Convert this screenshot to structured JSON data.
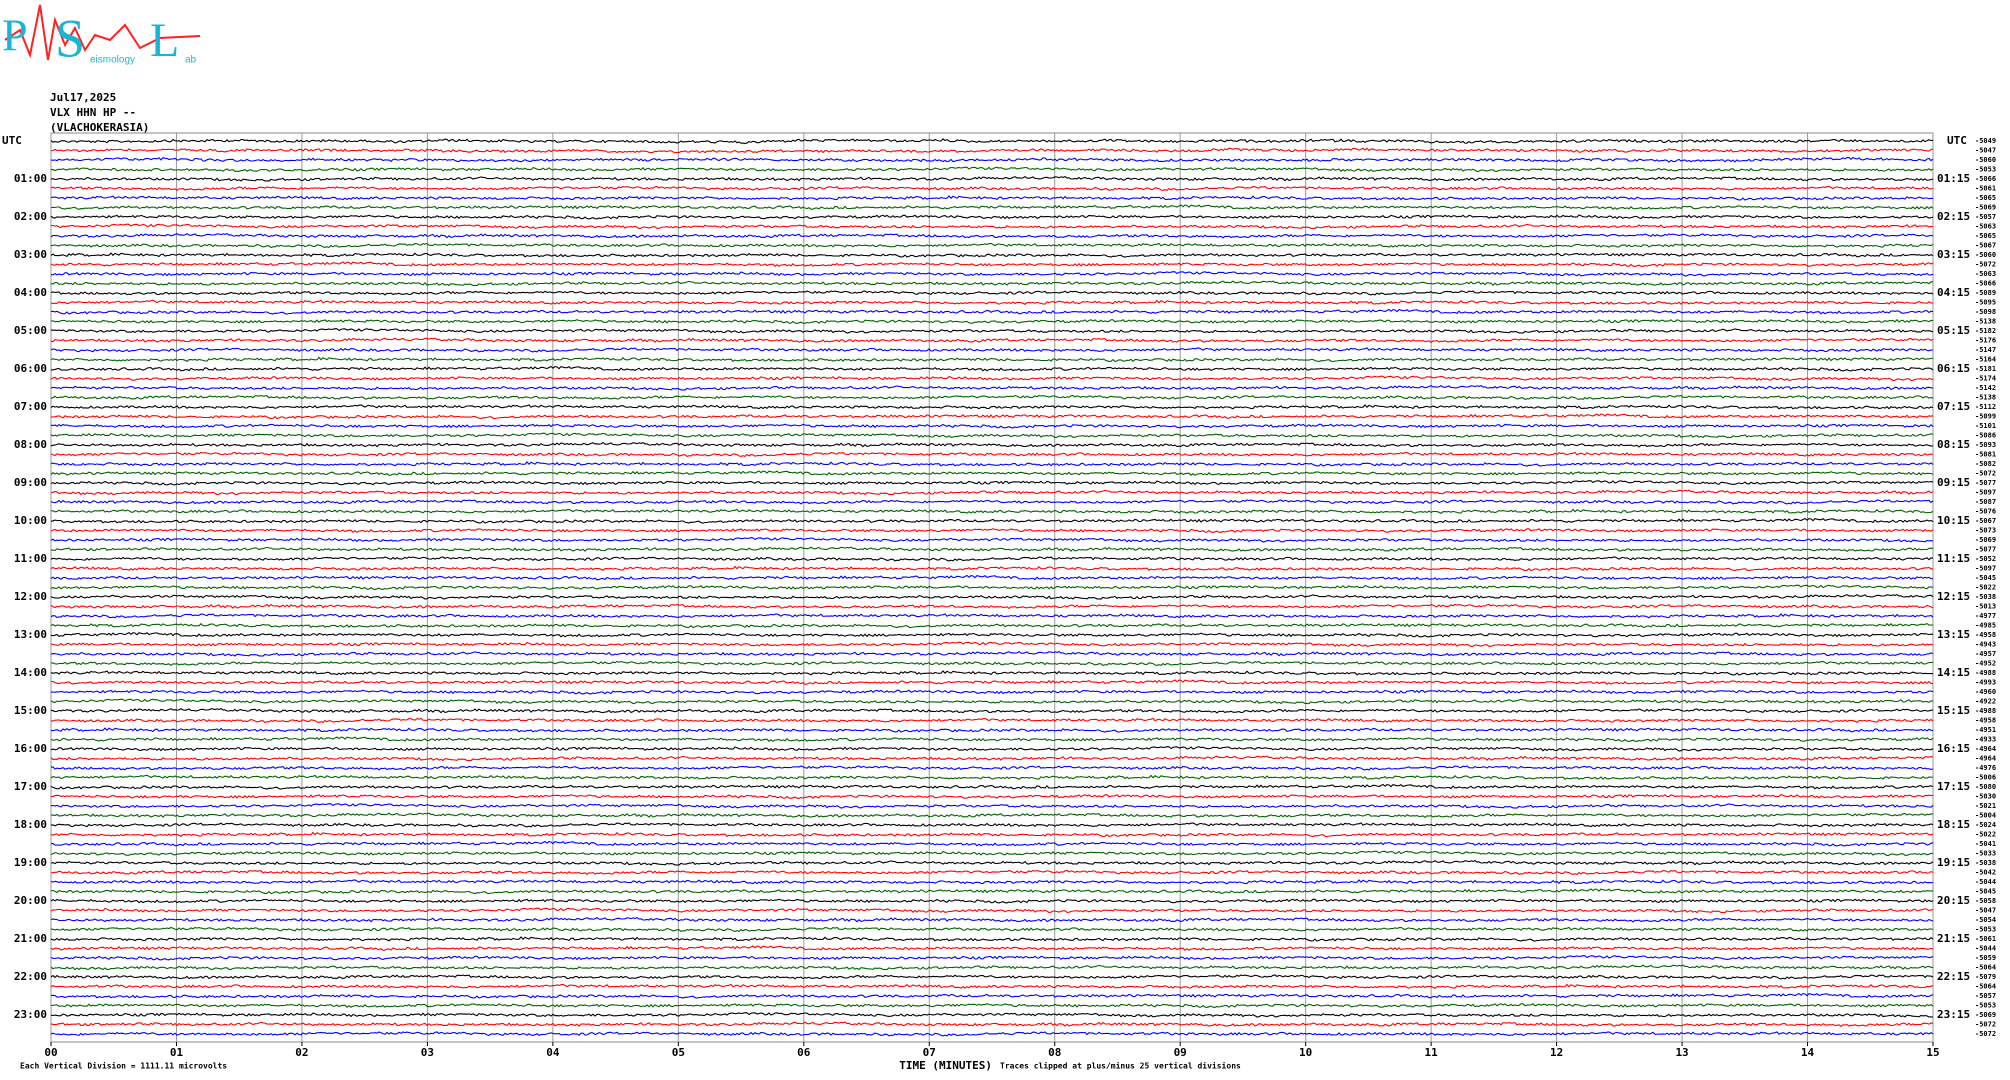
{
  "logo": {
    "letters": [
      "P",
      "S",
      "L"
    ],
    "small": [
      "eismology",
      "ab"
    ]
  },
  "header": {
    "date": "Jul17,2025",
    "station": "VLX HHN HP --",
    "site": "(VLACHOKERASIA)"
  },
  "chart_data": {
    "type": "helicorder",
    "utc_left": "UTC",
    "utc_right": "UTC",
    "hours_left": [
      "01:00",
      "02:00",
      "03:00",
      "04:00",
      "05:00",
      "06:00",
      "07:00",
      "08:00",
      "09:00",
      "10:00",
      "11:00",
      "12:00",
      "13:00",
      "14:00",
      "15:00",
      "16:00",
      "17:00",
      "18:00",
      "19:00",
      "20:00",
      "21:00",
      "22:00",
      "23:00"
    ],
    "hours_right": [
      "01:15",
      "02:15",
      "03:15",
      "04:15",
      "05:15",
      "06:15",
      "07:15",
      "08:15",
      "09:15",
      "10:15",
      "11:15",
      "12:15",
      "13:15",
      "14:15",
      "15:15",
      "16:15",
      "17:15",
      "18:15",
      "19:15",
      "20:15",
      "21:15",
      "22:15",
      "23:15"
    ],
    "trace_colors": [
      "#000000",
      "#ff0000",
      "#0000ff",
      "#006400"
    ],
    "trace_offsets": [
      -5049,
      -5047,
      -5060,
      -5053,
      -5066,
      -5061,
      -5065,
      -5069,
      -5057,
      -5063,
      -5065,
      -5067,
      -5060,
      -5072,
      -5063,
      -5066,
      -5089,
      -5095,
      -5098,
      -5138,
      -5182,
      -5176,
      -5147,
      -5164,
      -5181,
      -5174,
      -5142,
      -5138,
      -5112,
      -5099,
      -5101,
      -5086,
      -5093,
      -5081,
      -5082,
      -5072,
      -5077,
      -5097,
      -5087,
      -5076,
      -5067,
      -5073,
      -5069,
      -5077,
      -5052,
      -5097,
      -5045,
      -5022,
      -5038,
      -5013,
      -4977,
      -4985,
      -4958,
      -4943,
      -4957,
      -4952,
      -4988,
      -4993,
      -4960,
      -4922,
      -4988,
      -4958,
      -4951,
      -4933,
      -4964,
      -4964,
      -4976,
      -5006,
      -5080,
      -5030,
      -5021,
      -5004,
      -5024,
      -5022,
      -5041,
      -5033,
      -5038,
      -5042,
      -5044,
      -5045,
      -5058,
      -5047,
      -5054,
      -5053,
      -5061,
      -5044,
      -5059,
      -5064,
      -5079,
      -5064,
      -5057,
      -5053,
      -5069,
      -5072,
      -5072
    ],
    "xlim": [
      0,
      15
    ],
    "xticks": [
      {
        "value": 0,
        "label": "00"
      },
      {
        "value": 1,
        "label": "01"
      },
      {
        "value": 2,
        "label": "02"
      },
      {
        "value": 3,
        "label": "03"
      },
      {
        "value": 4,
        "label": "04"
      },
      {
        "value": 5,
        "label": "05"
      },
      {
        "value": 6,
        "label": "06"
      },
      {
        "value": 7,
        "label": "07"
      },
      {
        "value": 8,
        "label": "08"
      },
      {
        "value": 9,
        "label": "09"
      },
      10,
      11,
      12,
      13,
      14,
      15
    ],
    "xlabel": "TIME (MINUTES)",
    "footer_left": "Each Vertical Division = 1111.11 microvolts",
    "footer_right": "Traces clipped at plus/minus 25 vertical divisions",
    "grid": true
  }
}
